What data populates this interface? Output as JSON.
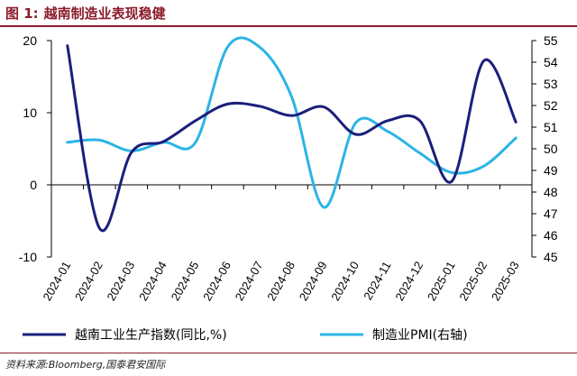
{
  "figure": {
    "label": "图 1:",
    "title": "越南制造业表现稳健",
    "source": "资料来源:Bloomberg,国泰君安国际"
  },
  "chart_data": {
    "type": "line",
    "title": "越南制造业表现稳健",
    "categories": [
      "2024-01",
      "2024-02",
      "2024-03",
      "2024-04",
      "2024-05",
      "2024-06",
      "2024-07",
      "2024-08",
      "2024-09",
      "2024-10",
      "2024-11",
      "2024-12",
      "2025-01",
      "2025-02",
      "2025-03"
    ],
    "series": [
      {
        "name": "越南工业生产指数(同比,%)",
        "axis": "left",
        "color": "#1b1f7a",
        "values": [
          19.3,
          -6.0,
          4.5,
          6.0,
          8.9,
          11.2,
          10.9,
          9.6,
          10.8,
          7.0,
          8.9,
          8.9,
          0.5,
          17.2,
          8.7
        ]
      },
      {
        "name": "制造业PMI(右轴)",
        "axis": "right",
        "color": "#2bb4e6",
        "values": [
          50.3,
          50.4,
          49.9,
          50.3,
          50.3,
          54.7,
          54.7,
          52.4,
          47.3,
          51.2,
          50.8,
          49.8,
          48.9,
          49.2,
          50.5
        ]
      }
    ],
    "y_left": {
      "min": -10,
      "max": 20,
      "ticks": [
        -10,
        0,
        10,
        20
      ]
    },
    "y_right": {
      "min": 45,
      "max": 55,
      "ticks": [
        45,
        46,
        47,
        48,
        49,
        50,
        51,
        52,
        53,
        54,
        55
      ]
    },
    "legend_position": "bottom",
    "grid": false
  }
}
